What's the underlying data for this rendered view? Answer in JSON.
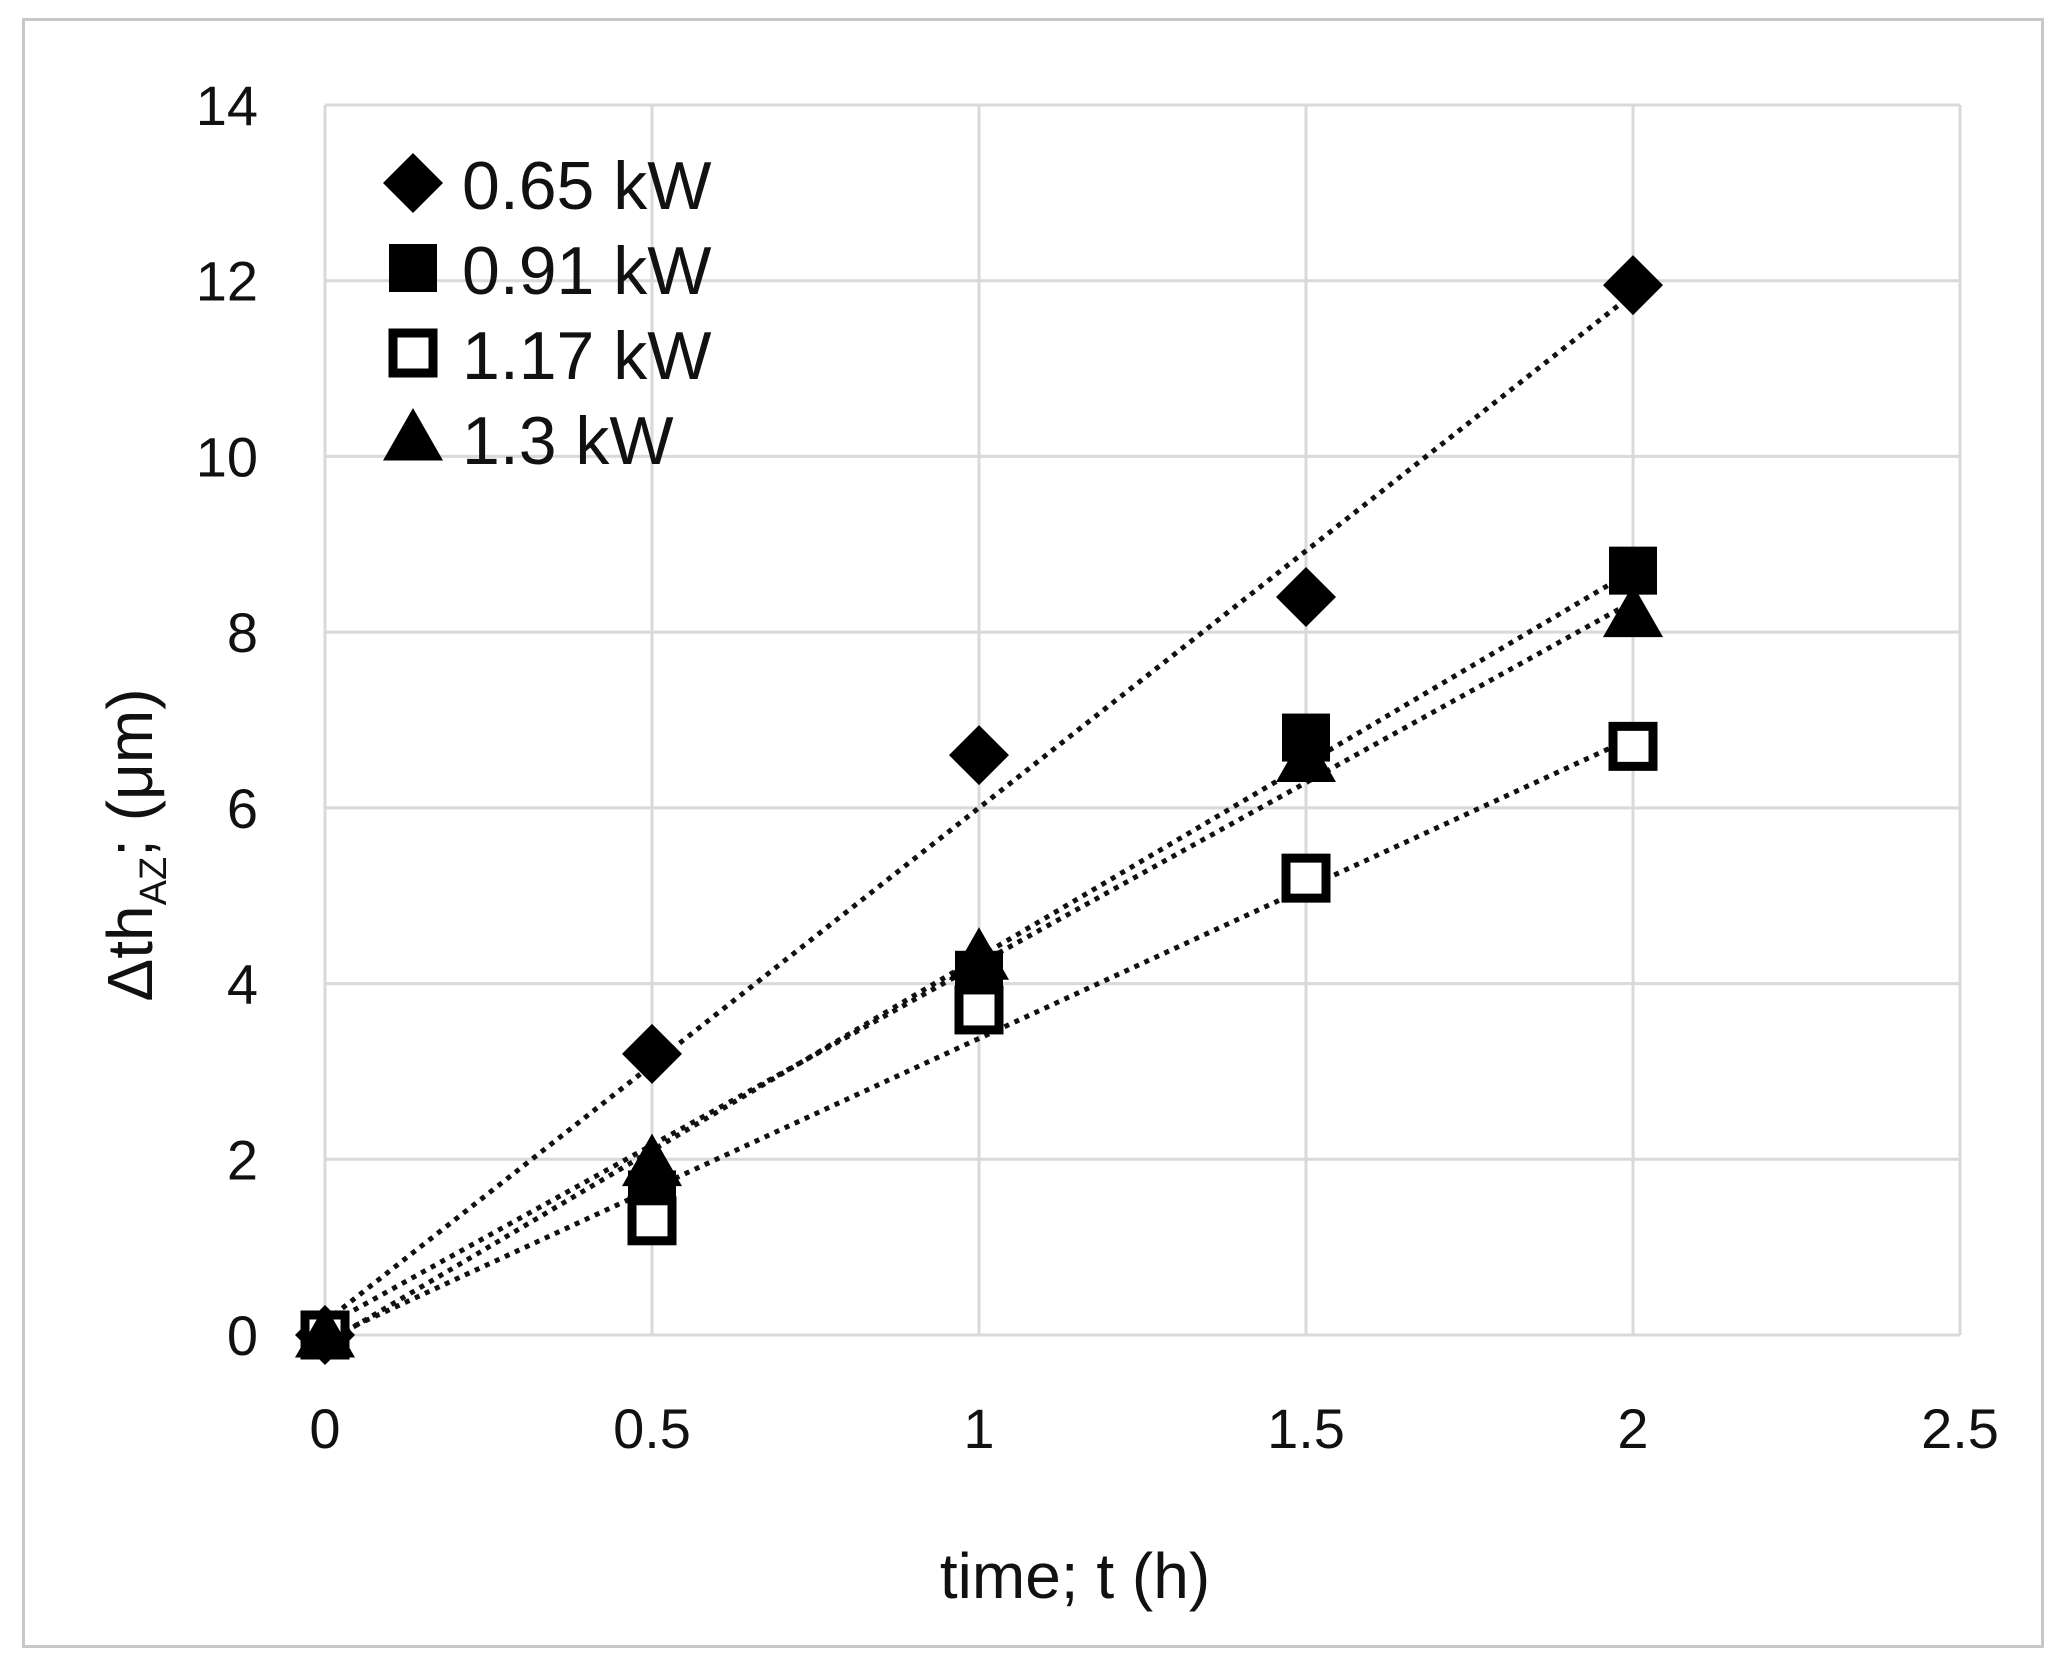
{
  "chart_data": {
    "type": "scatter",
    "title": "",
    "xlabel": "time; t (h)",
    "ylabel": {
      "main": "Δth",
      "subscript": "AZ",
      "rest": "; (μm)"
    },
    "xlim": [
      0,
      2.5
    ],
    "ylim": [
      0,
      14
    ],
    "x_ticks": [
      0,
      0.5,
      1,
      1.5,
      2,
      2.5
    ],
    "y_ticks": [
      0,
      2,
      4,
      6,
      8,
      10,
      12,
      14
    ],
    "x_tick_labels": [
      "0",
      "0.5",
      "1",
      "1.5",
      "2",
      "2.5"
    ],
    "y_tick_labels": [
      "0",
      "2",
      "4",
      "6",
      "8",
      "10",
      "12",
      "14"
    ],
    "grid": true,
    "legend_position": "top-left",
    "series": [
      {
        "name": "0.65 kW",
        "marker": "diamond",
        "x": [
          0,
          0.5,
          1,
          1.5,
          2
        ],
        "y": [
          0,
          3.2,
          6.6,
          8.4,
          11.95
        ],
        "trendline": {
          "type": "linear",
          "x": [
            0,
            2
          ],
          "y": [
            0.15,
            11.85
          ]
        }
      },
      {
        "name": "0.91 kW",
        "marker": "square-filled",
        "x": [
          0,
          0.5,
          1,
          1.5,
          2
        ],
        "y": [
          0,
          1.6,
          4.1,
          6.8,
          8.7
        ],
        "trendline": {
          "type": "linear",
          "x": [
            0,
            2
          ],
          "y": [
            -0.1,
            8.7
          ]
        }
      },
      {
        "name": "1.17 kW",
        "marker": "square-open",
        "x": [
          0,
          0.5,
          1,
          1.5,
          2
        ],
        "y": [
          0,
          1.3,
          3.7,
          5.2,
          6.7
        ],
        "trendline": {
          "type": "linear",
          "x": [
            0,
            2
          ],
          "y": [
            -0.05,
            6.8
          ]
        }
      },
      {
        "name": "1.3 kW",
        "marker": "triangle",
        "x": [
          0,
          0.5,
          1,
          1.5,
          2
        ],
        "y": [
          0,
          1.95,
          4.3,
          6.55,
          8.2
        ],
        "trendline": {
          "type": "linear",
          "x": [
            0,
            2
          ],
          "y": [
            0.1,
            8.35
          ]
        }
      }
    ]
  }
}
